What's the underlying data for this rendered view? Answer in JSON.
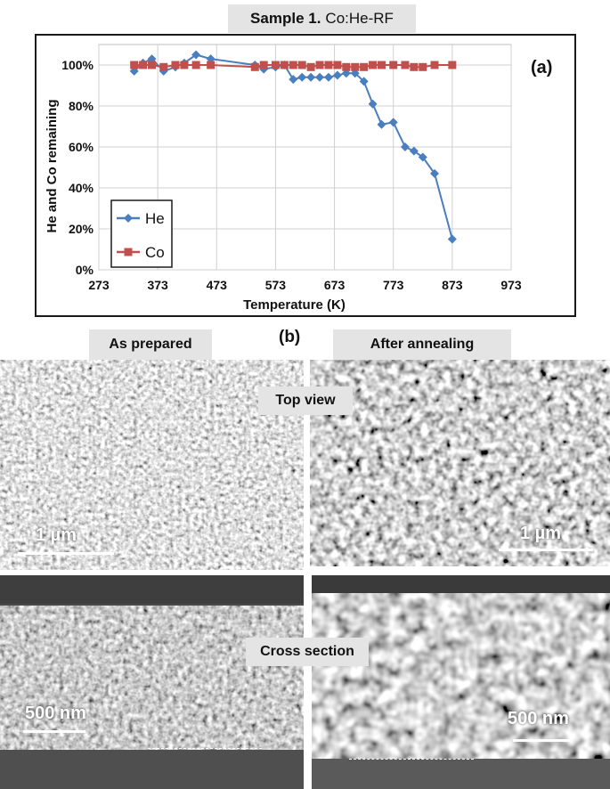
{
  "figure": {
    "title_bold": "Sample 1.",
    "title_rest": "Co:He-RF",
    "panel_a": "(a)",
    "panel_b": "(b)",
    "col_left": "As prepared",
    "col_right": "After annealing",
    "row_top": "Top view",
    "row_bottom": "Cross section",
    "scale_top_left": "1 µm",
    "scale_top_right": "1 µm",
    "scale_bottom_left": "500 nm",
    "scale_bottom_right": "500 nm"
  },
  "chart_data": {
    "type": "line",
    "title": "",
    "xlabel": "Temperature (K)",
    "ylabel": "He and Co  remaining",
    "xlim": [
      273,
      973
    ],
    "ylim": [
      0,
      110
    ],
    "xticks": [
      273,
      373,
      473,
      573,
      673,
      773,
      873,
      973
    ],
    "xtick_labels": [
      "273",
      "373",
      "473",
      "573",
      "673",
      "773",
      "873",
      "973"
    ],
    "yticks": [
      0,
      20,
      40,
      60,
      80,
      100
    ],
    "ytick_labels": [
      "0%",
      "20%",
      "40%",
      "60%",
      "80%",
      "100%"
    ],
    "grid": true,
    "legend_position": "bottom-left",
    "series": [
      {
        "name": "He",
        "color": "#4a7ebf",
        "marker": "diamond",
        "x": [
          333,
          348,
          363,
          383,
          403,
          418,
          438,
          463,
          538,
          553,
          573,
          588,
          603,
          618,
          633,
          648,
          663,
          678,
          693,
          708,
          723,
          738,
          753,
          773,
          793,
          808,
          823,
          843,
          873
        ],
        "y": [
          97,
          101,
          103,
          97,
          99,
          101,
          105,
          103,
          100,
          98,
          99,
          100,
          93,
          94,
          94,
          94,
          94,
          95,
          96,
          96,
          92,
          81,
          71,
          72,
          60,
          58,
          55,
          47,
          15
        ]
      },
      {
        "name": "Co",
        "color": "#c0504d",
        "marker": "square",
        "x": [
          333,
          348,
          363,
          383,
          403,
          418,
          438,
          463,
          538,
          553,
          573,
          588,
          603,
          618,
          633,
          648,
          663,
          678,
          693,
          708,
          723,
          738,
          753,
          773,
          793,
          808,
          823,
          843,
          873
        ],
        "y": [
          100,
          100,
          100,
          99,
          100,
          100,
          100,
          100,
          99,
          100,
          100,
          100,
          100,
          100,
          99,
          100,
          100,
          100,
          99,
          99,
          99,
          100,
          100,
          100,
          100,
          99,
          99,
          100,
          100
        ]
      }
    ]
  }
}
